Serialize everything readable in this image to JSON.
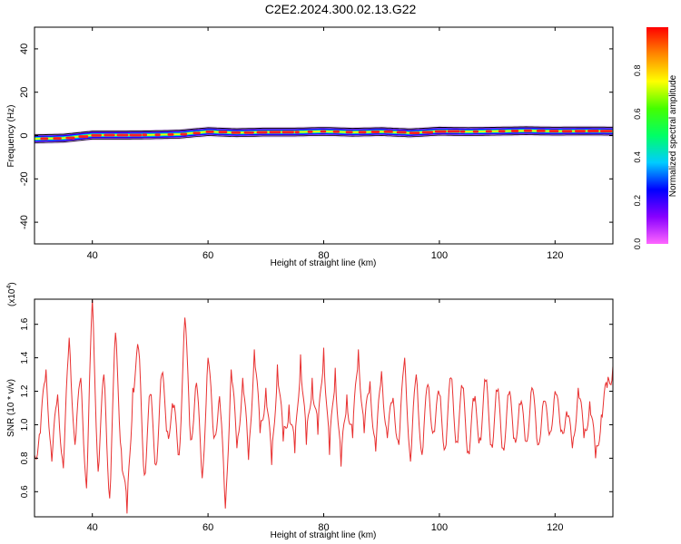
{
  "title": "C2E2.2024.300.02.13.G22",
  "chart_data": [
    {
      "type": "heatmap",
      "xlabel": "Height of straight line (km)",
      "ylabel": "Frequency (Hz)",
      "xlim": [
        30,
        130
      ],
      "ylim": [
        -50,
        50
      ],
      "xticks": [
        40,
        60,
        80,
        100,
        120
      ],
      "yticks": [
        -40,
        -20,
        0,
        20,
        40
      ],
      "colorbar": {
        "label": "Normalized spectral amplitude",
        "range": [
          0,
          1
        ],
        "ticks": [
          "0.0",
          "0.2",
          "0.4",
          "0.6",
          "0.8"
        ],
        "colors": [
          "#ff66ff",
          "#8800ff",
          "#0000ff",
          "#00ccff",
          "#00ff66",
          "#44ff00",
          "#ffff00",
          "#ff8800",
          "#ff0000"
        ]
      },
      "ridge_frequency": {
        "x": [
          30,
          35,
          40,
          45,
          50,
          55,
          60,
          65,
          70,
          75,
          80,
          85,
          90,
          95,
          100,
          105,
          110,
          115,
          120,
          125,
          130
        ],
        "y": [
          -1.5,
          -1.2,
          0.2,
          0.2,
          0.3,
          0.6,
          1.8,
          1.3,
          1.6,
          1.6,
          1.9,
          1.5,
          1.8,
          1.2,
          2.0,
          1.8,
          2.0,
          2.2,
          2.0,
          2.1,
          2.0
        ]
      }
    },
    {
      "type": "line",
      "xlabel": "Height of straight line (km)",
      "ylabel": "SNR (10 * v/v)",
      "multiplier": "(x10",
      "multiplier_exp": "4",
      "multiplier_close": ")",
      "xlim": [
        30,
        130
      ],
      "ylim": [
        0.45,
        1.75
      ],
      "xticks": [
        40,
        60,
        80,
        100,
        120
      ],
      "yticks": [
        "0.6",
        "0.8",
        "1.0",
        "1.2",
        "1.4",
        "1.6"
      ],
      "color": "#e83030",
      "series": [
        {
          "x": [
            30,
            31,
            32,
            33,
            34,
            35,
            36,
            37,
            38,
            39,
            40,
            41,
            42,
            43,
            44,
            45,
            46,
            47,
            48,
            49,
            50,
            51,
            52,
            53,
            54,
            55,
            56,
            57,
            58,
            59,
            60,
            61,
            62,
            63,
            64,
            65,
            66,
            67,
            68,
            69,
            70,
            71,
            72,
            73,
            74,
            75,
            76,
            77,
            78,
            79,
            80,
            81,
            82,
            83,
            84,
            85,
            86,
            87,
            88,
            89,
            90,
            91,
            92,
            93,
            94,
            95,
            96,
            97,
            98,
            99,
            100,
            101,
            102,
            103,
            104,
            105,
            106,
            107,
            108,
            109,
            110,
            111,
            112,
            113,
            114,
            115,
            116,
            117,
            118,
            119,
            120,
            121,
            122,
            123,
            124,
            125,
            126,
            127,
            128,
            129,
            130
          ],
          "y": [
            0.82,
            0.95,
            1.33,
            0.78,
            1.18,
            0.74,
            1.52,
            0.88,
            1.28,
            0.62,
            1.75,
            0.72,
            1.3,
            0.56,
            1.55,
            0.85,
            0.47,
            1.22,
            1.45,
            0.7,
            1.18,
            0.76,
            1.3,
            0.96,
            1.1,
            0.82,
            1.64,
            0.91,
            1.25,
            0.68,
            1.4,
            0.92,
            1.17,
            0.5,
            1.33,
            0.86,
            1.28,
            0.79,
            1.45,
            0.95,
            1.22,
            0.76,
            1.36,
            0.9,
            1.12,
            0.83,
            1.42,
            0.88,
            1.28,
            0.94,
            1.46,
            0.82,
            1.34,
            0.75,
            1.18,
            0.92,
            1.45,
            0.95,
            1.26,
            0.84,
            1.32,
            0.92,
            1.16,
            0.88,
            1.4,
            0.78,
            1.3,
            0.82,
            1.24,
            0.96,
            1.18,
            0.86,
            1.28,
            0.9,
            1.22,
            0.84,
            1.14,
            0.92,
            1.26,
            0.88,
            1.2,
            0.86,
            1.18,
            0.92,
            1.12,
            0.9,
            1.22,
            0.88,
            1.14,
            0.94,
            1.2,
            0.96,
            1.08,
            0.86,
            1.22,
            0.92,
            1.14,
            0.8,
            1.06,
            1.22,
            1.35
          ]
        }
      ]
    }
  ]
}
